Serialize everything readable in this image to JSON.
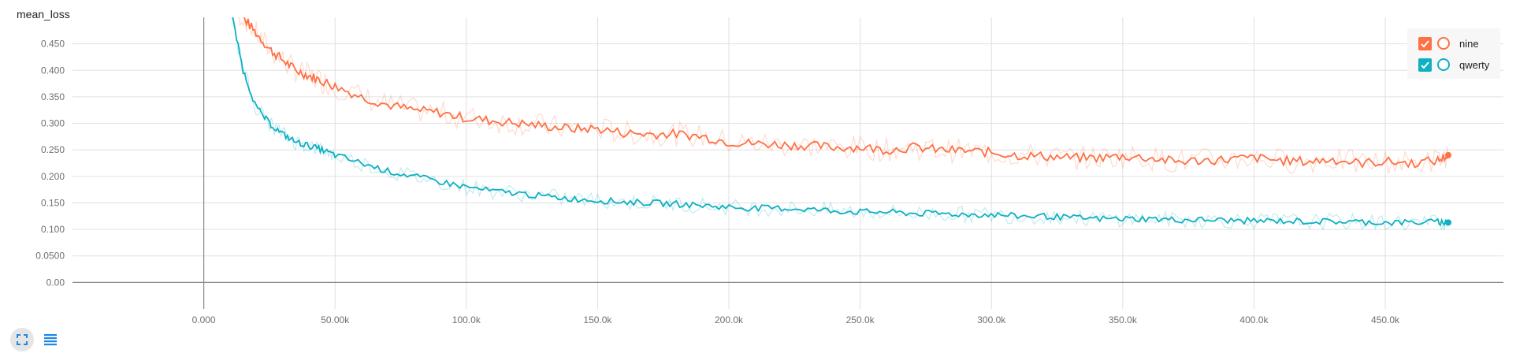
{
  "card": {
    "title": "mean_loss",
    "expand_icon": "fullscreen-icon",
    "data_icon": "list-icon"
  },
  "legend": {
    "items": [
      {
        "label": "nine",
        "color": "#ff7043",
        "checked": true
      },
      {
        "label": "qwerty",
        "color": "#0eb0c2",
        "checked": true
      }
    ]
  },
  "chart_data": {
    "type": "line",
    "title": "mean_loss",
    "xlabel": "",
    "ylabel": "",
    "xlim": [
      -50000,
      495000
    ],
    "ylim": [
      -0.05,
      0.5
    ],
    "grid": true,
    "legend_position": "top-right",
    "x_ticks": [
      0,
      50000,
      100000,
      150000,
      200000,
      250000,
      300000,
      350000,
      400000,
      450000
    ],
    "x_tick_labels": [
      "0.000",
      "50.00k",
      "100.0k",
      "150.0k",
      "200.0k",
      "250.0k",
      "300.0k",
      "350.0k",
      "400.0k",
      "450.0k"
    ],
    "y_ticks": [
      0,
      0.05,
      0.1,
      0.15,
      0.2,
      0.25,
      0.3,
      0.35,
      0.4,
      0.45
    ],
    "y_tick_labels": [
      "0.00",
      "0.0500",
      "0.100",
      "0.150",
      "0.200",
      "0.250",
      "0.300",
      "0.350",
      "0.400",
      "0.450"
    ],
    "series": [
      {
        "name": "nine",
        "color": "#ff7043",
        "x": [
          10000,
          15000,
          20000,
          25000,
          30000,
          35000,
          40000,
          45000,
          50000,
          60000,
          70000,
          80000,
          90000,
          100000,
          110000,
          120000,
          130000,
          140000,
          150000,
          160000,
          170000,
          180000,
          190000,
          200000,
          210000,
          220000,
          230000,
          240000,
          250000,
          260000,
          270000,
          280000,
          290000,
          300000,
          310000,
          320000,
          330000,
          340000,
          350000,
          360000,
          370000,
          380000,
          390000,
          400000,
          410000,
          420000,
          430000,
          440000,
          450000,
          460000,
          470000,
          474000
        ],
        "y": [
          0.52,
          0.5,
          0.47,
          0.44,
          0.42,
          0.4,
          0.39,
          0.38,
          0.37,
          0.35,
          0.335,
          0.325,
          0.32,
          0.31,
          0.305,
          0.3,
          0.295,
          0.29,
          0.29,
          0.282,
          0.28,
          0.28,
          0.275,
          0.265,
          0.262,
          0.26,
          0.258,
          0.255,
          0.255,
          0.25,
          0.255,
          0.25,
          0.248,
          0.245,
          0.24,
          0.238,
          0.235,
          0.235,
          0.238,
          0.235,
          0.228,
          0.23,
          0.232,
          0.235,
          0.23,
          0.228,
          0.232,
          0.225,
          0.228,
          0.225,
          0.23,
          0.24
        ]
      },
      {
        "name": "qwerty",
        "color": "#0eb0c2",
        "x": [
          10000,
          15000,
          20000,
          25000,
          30000,
          35000,
          40000,
          45000,
          50000,
          60000,
          70000,
          80000,
          90000,
          100000,
          110000,
          120000,
          130000,
          140000,
          150000,
          160000,
          170000,
          180000,
          190000,
          200000,
          210000,
          220000,
          230000,
          240000,
          250000,
          260000,
          270000,
          280000,
          290000,
          300000,
          310000,
          320000,
          330000,
          340000,
          350000,
          360000,
          370000,
          380000,
          390000,
          400000,
          410000,
          420000,
          430000,
          440000,
          450000,
          460000,
          470000,
          474000
        ],
        "y": [
          0.52,
          0.4,
          0.33,
          0.3,
          0.28,
          0.265,
          0.258,
          0.25,
          0.24,
          0.225,
          0.21,
          0.2,
          0.19,
          0.18,
          0.172,
          0.168,
          0.162,
          0.158,
          0.155,
          0.152,
          0.15,
          0.148,
          0.145,
          0.142,
          0.14,
          0.14,
          0.138,
          0.135,
          0.133,
          0.133,
          0.13,
          0.13,
          0.128,
          0.128,
          0.125,
          0.125,
          0.122,
          0.12,
          0.12,
          0.12,
          0.118,
          0.118,
          0.117,
          0.116,
          0.116,
          0.115,
          0.115,
          0.114,
          0.113,
          0.113,
          0.114,
          0.113
        ]
      }
    ]
  }
}
